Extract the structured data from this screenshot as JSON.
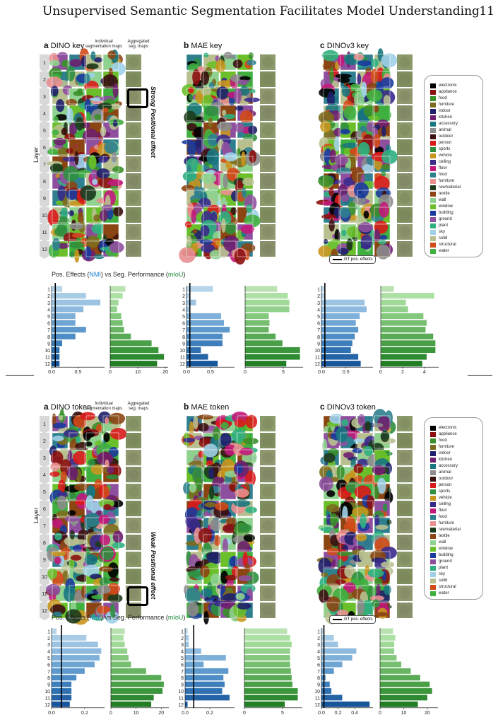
{
  "header": {
    "title": "Unsupervised Semantic Segmentation Facilitates Model Understanding",
    "page_number": "11"
  },
  "legend_categories": [
    {
      "name": "electronic",
      "color": "#000000"
    },
    {
      "name": "appliance",
      "color": "#8c0f0f"
    },
    {
      "name": "food",
      "color": "#3a8f2a"
    },
    {
      "name": "furniture",
      "color": "#7c6b1e"
    },
    {
      "name": "indoor",
      "color": "#1f1f6b"
    },
    {
      "name": "kitchen",
      "color": "#6f1f6f"
    },
    {
      "name": "accessory",
      "color": "#18777f"
    },
    {
      "name": "animal",
      "color": "#8c8c8c"
    },
    {
      "name": "outdoor",
      "color": "#3b1010"
    },
    {
      "name": "person",
      "color": "#d91a1a"
    },
    {
      "name": "sports",
      "color": "#2f8f3f"
    },
    {
      "name": "vehicle",
      "color": "#c8961e"
    },
    {
      "name": "ceiling",
      "color": "#3a2a8c"
    },
    {
      "name": "floor",
      "color": "#c2187a"
    },
    {
      "name": "food",
      "color": "#2f7f8f"
    },
    {
      "name": "furniture",
      "color": "#e88f8f"
    },
    {
      "name": "rawmaterial",
      "color": "#1c3a1c"
    },
    {
      "name": "textile",
      "color": "#8b4513"
    },
    {
      "name": "wall",
      "color": "#8fd18f"
    },
    {
      "name": "window",
      "color": "#6abf2a"
    },
    {
      "name": "building",
      "color": "#1a3a9c"
    },
    {
      "name": "ground",
      "color": "#8f4f9f"
    },
    {
      "name": "plant",
      "color": "#2faf7f"
    },
    {
      "name": "sky",
      "color": "#9fd0e8"
    },
    {
      "name": "solid",
      "color": "#b8c08f"
    },
    {
      "name": "structural",
      "color": "#d24a1a"
    },
    {
      "name": "water",
      "color": "#3faf3f"
    }
  ],
  "panels_top": {
    "a": {
      "letter": "a",
      "name": "DINO key"
    },
    "b": {
      "letter": "b",
      "name": "MAE key"
    },
    "c": {
      "letter": "c",
      "name": "DINOv3 key"
    },
    "indiv_label": "Individual segmentation maps",
    "agg_label": "Aggregated seg. maps",
    "annotation": "Strong Positional effect",
    "layer_axis": "Layer",
    "layers": [
      "1",
      "2",
      "3",
      "4",
      "5",
      "6",
      "7",
      "8",
      "9",
      "10",
      "11",
      "12"
    ]
  },
  "panels_bottom": {
    "a": {
      "letter": "a",
      "name": "DINO token"
    },
    "b": {
      "letter": "b",
      "name": "MAE token"
    },
    "c": {
      "letter": "c",
      "name": "DINOv3 token"
    },
    "indiv_label": "Individual segmentation maps",
    "agg_label": "Aggregated seg. maps",
    "annotation": "Weak Positional effect",
    "layer_axis": "Layer",
    "layers": [
      "1",
      "2",
      "3",
      "4",
      "5",
      "6",
      "7",
      "8",
      "9",
      "10",
      "11",
      "12"
    ]
  },
  "captions": {
    "prefix": "Pos. Effects (",
    "nmi": "NMI",
    "mid": ") vs Seg. Performance (",
    "miou": "mIoU",
    "suffix": ")",
    "gt_legend": "GT pos. effects"
  },
  "chart_data": [
    {
      "type": "bar",
      "panel": "top-a",
      "orientation": "horizontal",
      "categories": [
        "1",
        "2",
        "3",
        "4",
        "5",
        "6",
        "7",
        "8",
        "9",
        "10",
        "11",
        "12"
      ],
      "series": [
        {
          "values": [
            0.2,
            0.65,
            0.92,
            0.6,
            0.45,
            0.45,
            0.65,
            0.45,
            0.2,
            0.15,
            0.15,
            0.15
          ]
        }
      ],
      "xlim": [
        0,
        1.0
      ],
      "xticks": [
        "0.0",
        "0.5"
      ],
      "gt_line": 0.07
    },
    {
      "type": "bar",
      "panel": "top-a",
      "orientation": "horizontal",
      "categories": [
        "1",
        "2",
        "3",
        "4",
        "5",
        "6",
        "7",
        "8",
        "9",
        "10",
        "11",
        "12"
      ],
      "series": [
        {
          "values": [
            5.5,
            4.5,
            3,
            2.5,
            4,
            4.5,
            5,
            7.5,
            15,
            17.5,
            19.5,
            17
          ]
        }
      ],
      "xlim": [
        0,
        21
      ],
      "xticks": [
        "0",
        "10",
        "20"
      ]
    },
    {
      "type": "bar",
      "panel": "top-b",
      "orientation": "horizontal",
      "categories": [
        "1",
        "2",
        "3",
        "4",
        "5",
        "6",
        "7",
        "8",
        "9",
        "10",
        "11",
        "12"
      ],
      "series": [
        {
          "values": [
            0.55,
            0.05,
            0.2,
            0.05,
            0.72,
            0.78,
            0.9,
            0.75,
            0.75,
            0.3,
            0.45,
            0.65
          ]
        }
      ],
      "xlim": [
        0,
        1.0
      ],
      "xticks": [
        "0.0",
        "0.5"
      ],
      "gt_line": 0.07
    },
    {
      "type": "bar",
      "panel": "top-b",
      "orientation": "horizontal",
      "categories": [
        "1",
        "2",
        "3",
        "4",
        "5",
        "6",
        "7",
        "8",
        "9",
        "10",
        "11",
        "12"
      ],
      "series": [
        {
          "values": [
            4.2,
            5.6,
            5.8,
            5.8,
            3.1,
            3.2,
            3.1,
            4.0,
            4.9,
            7.2,
            7.2,
            5.4
          ]
        }
      ],
      "xlim": [
        0,
        7.6
      ],
      "xticks": [
        "0",
        "5"
      ]
    },
    {
      "type": "bar",
      "panel": "top-c",
      "orientation": "horizontal",
      "categories": [
        "1",
        "2",
        "3",
        "4",
        "5",
        "6",
        "7",
        "8",
        "9",
        "10",
        "11",
        "12"
      ],
      "series": [
        {
          "values": [
            0.05,
            0.05,
            0.88,
            0.92,
            0.78,
            0.7,
            0.75,
            0.68,
            0.63,
            0.6,
            0.75,
            0.8
          ]
        }
      ],
      "xlim": [
        0,
        1.05
      ],
      "xticks": [
        "0.0",
        "0.5"
      ],
      "gt_line": 0.07
    },
    {
      "type": "bar",
      "panel": "top-c",
      "orientation": "horizontal",
      "categories": [
        "1",
        "2",
        "3",
        "4",
        "5",
        "6",
        "7",
        "8",
        "9",
        "10",
        "11",
        "12"
      ],
      "series": [
        {
          "values": [
            1.2,
            4.9,
            2.3,
            2.5,
            3.9,
            4.2,
            4.1,
            4.8,
            5.0,
            5.0,
            4.2,
            3.8
          ]
        }
      ],
      "xlim": [
        0,
        5.3
      ],
      "xticks": [
        "0",
        "2",
        "4"
      ]
    },
    {
      "type": "bar",
      "panel": "bottom-a",
      "orientation": "horizontal",
      "categories": [
        "1",
        "2",
        "3",
        "4",
        "5",
        "6",
        "7",
        "8",
        "9",
        "10",
        "11",
        "12"
      ],
      "series": [
        {
          "values": [
            0.03,
            0.21,
            0.28,
            0.3,
            0.29,
            0.26,
            0.2,
            0.15,
            0.12,
            0.12,
            0.12,
            0.11
          ]
        }
      ],
      "xlim": [
        0,
        0.32
      ],
      "xticks": [
        "0.0",
        "0.2"
      ],
      "gt_line": 0.06
    },
    {
      "type": "bar",
      "panel": "bottom-a",
      "orientation": "horizontal",
      "categories": [
        "1",
        "2",
        "3",
        "4",
        "5",
        "6",
        "7",
        "8",
        "9",
        "10",
        "11",
        "12"
      ],
      "series": [
        {
          "values": [
            5.5,
            5,
            5.5,
            6.5,
            7,
            8,
            14,
            20,
            21,
            20.5,
            17,
            16
          ]
        }
      ],
      "xlim": [
        0,
        23
      ],
      "xticks": [
        "0",
        "10",
        "20"
      ]
    },
    {
      "type": "bar",
      "panel": "bottom-b",
      "orientation": "horizontal",
      "categories": [
        "1",
        "2",
        "3",
        "4",
        "5",
        "6",
        "7",
        "8",
        "9",
        "10",
        "11",
        "12"
      ],
      "series": [
        {
          "values": [
            0.02,
            0.03,
            0.03,
            0.13,
            0.33,
            0.15,
            0.35,
            0.31,
            0.32,
            0.3,
            0.36,
            0.02
          ]
        }
      ],
      "xlim": [
        0,
        0.4
      ],
      "xticks": [
        "0.0",
        "0.2"
      ],
      "gt_line": 0.07
    },
    {
      "type": "bar",
      "panel": "bottom-b",
      "orientation": "horizontal",
      "categories": [
        "1",
        "2",
        "3",
        "4",
        "5",
        "6",
        "7",
        "8",
        "9",
        "10",
        "11",
        "12"
      ],
      "series": [
        {
          "values": [
            5.6,
            6.0,
            6.2,
            6.0,
            6.0,
            6.0,
            6.1,
            6.2,
            6.3,
            7.0,
            7.0,
            5.3
          ]
        }
      ],
      "xlim": [
        0,
        7.6
      ],
      "xticks": [
        "0",
        "5"
      ]
    },
    {
      "type": "bar",
      "panel": "bottom-c",
      "orientation": "horizontal",
      "categories": [
        "1",
        "2",
        "3",
        "4",
        "5",
        "6",
        "7",
        "8",
        "9",
        "10",
        "11",
        "12"
      ],
      "series": [
        {
          "values": [
            0.02,
            0.15,
            0.2,
            0.42,
            0.37,
            0.25,
            0.15,
            0.05,
            0.1,
            0.12,
            0.25,
            0.58
          ]
        }
      ],
      "xlim": [
        0,
        0.62
      ],
      "xticks": [
        "0.0",
        "0.2",
        "0.4"
      ],
      "gt_line": 0.03
    },
    {
      "type": "bar",
      "panel": "bottom-c",
      "orientation": "horizontal",
      "categories": [
        "1",
        "2",
        "3",
        "4",
        "5",
        "6",
        "7",
        "8",
        "9",
        "10",
        "11",
        "12"
      ],
      "series": [
        {
          "values": [
            5.5,
            6.5,
            6.0,
            6.0,
            7.0,
            9,
            13,
            17,
            21,
            22,
            20,
            16
          ]
        }
      ],
      "xlim": [
        0,
        24.5
      ],
      "xticks": [
        "0",
        "10",
        "20"
      ]
    }
  ]
}
